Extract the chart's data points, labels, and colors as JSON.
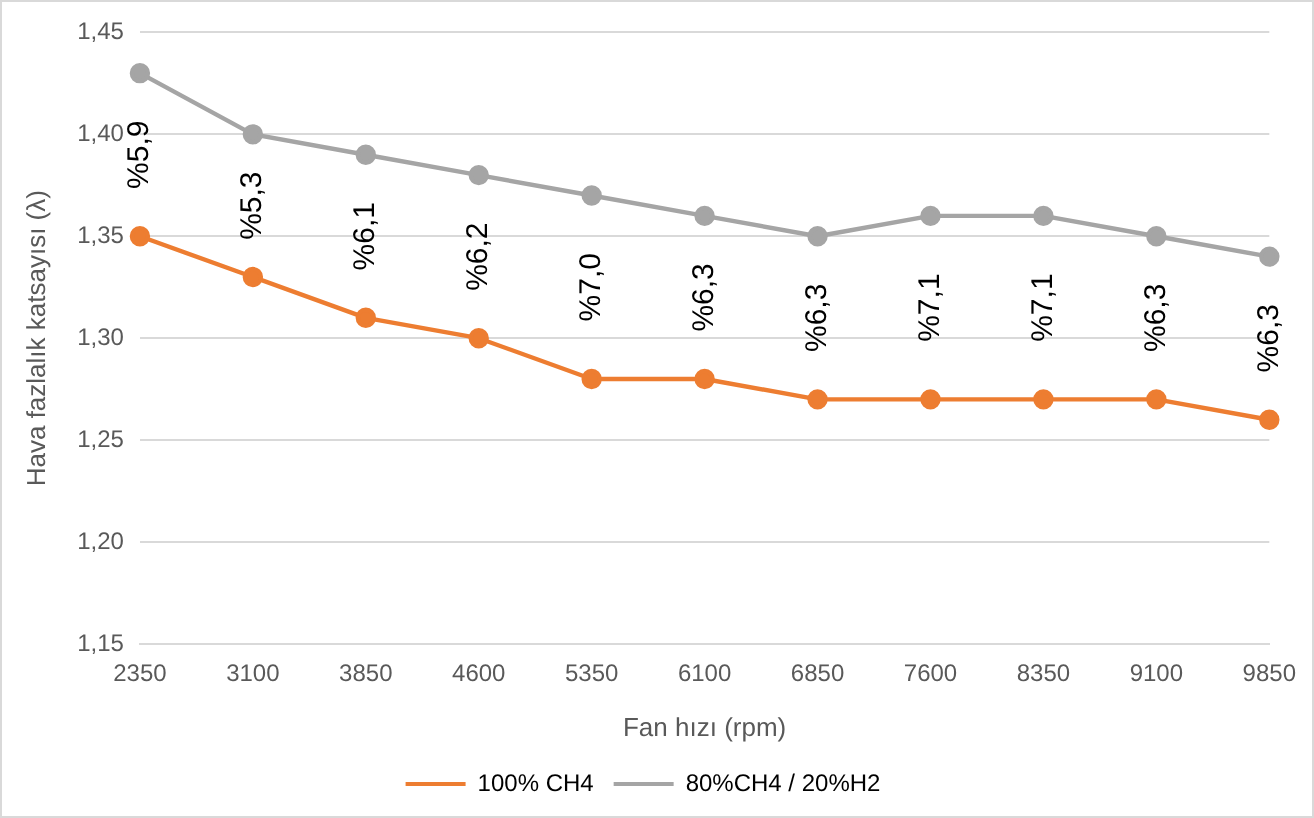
{
  "chart_data": {
    "type": "line",
    "xlabel": "Fan hızı (rpm)",
    "ylabel": "Hava fazlalık katsayısı (λ)",
    "categories": [
      "2350",
      "3100",
      "3850",
      "4600",
      "5350",
      "6100",
      "6850",
      "7600",
      "8350",
      "9100",
      "9850"
    ],
    "series": [
      {
        "name": "100% CH4",
        "color": "#ed7d31",
        "values": [
          1.35,
          1.33,
          1.31,
          1.3,
          1.28,
          1.28,
          1.27,
          1.27,
          1.27,
          1.27,
          1.26
        ]
      },
      {
        "name": "80%CH4 / 20%H2",
        "color": "#a5a5a5",
        "values": [
          1.43,
          1.4,
          1.39,
          1.38,
          1.37,
          1.36,
          1.35,
          1.36,
          1.36,
          1.35,
          1.34
        ]
      }
    ],
    "ylim": [
      1.15,
      1.45
    ],
    "yticks": [
      {
        "value": 1.15,
        "label": "1,15"
      },
      {
        "value": 1.2,
        "label": "1,20"
      },
      {
        "value": 1.25,
        "label": "1,25"
      },
      {
        "value": 1.3,
        "label": "1,30"
      },
      {
        "value": 1.35,
        "label": "1,35"
      },
      {
        "value": 1.4,
        "label": "1,40"
      },
      {
        "value": 1.45,
        "label": "1,45"
      }
    ],
    "grid": "y",
    "legend": "bottom",
    "marker": "circle",
    "line_style": "solid",
    "annotations": [
      "%5,9",
      "%5,3",
      "%6,1",
      "%6,2",
      "%7,0",
      "%6,3",
      "%6,3",
      "%7,1",
      "%7,1",
      "%6,3",
      "%6,3"
    ]
  }
}
